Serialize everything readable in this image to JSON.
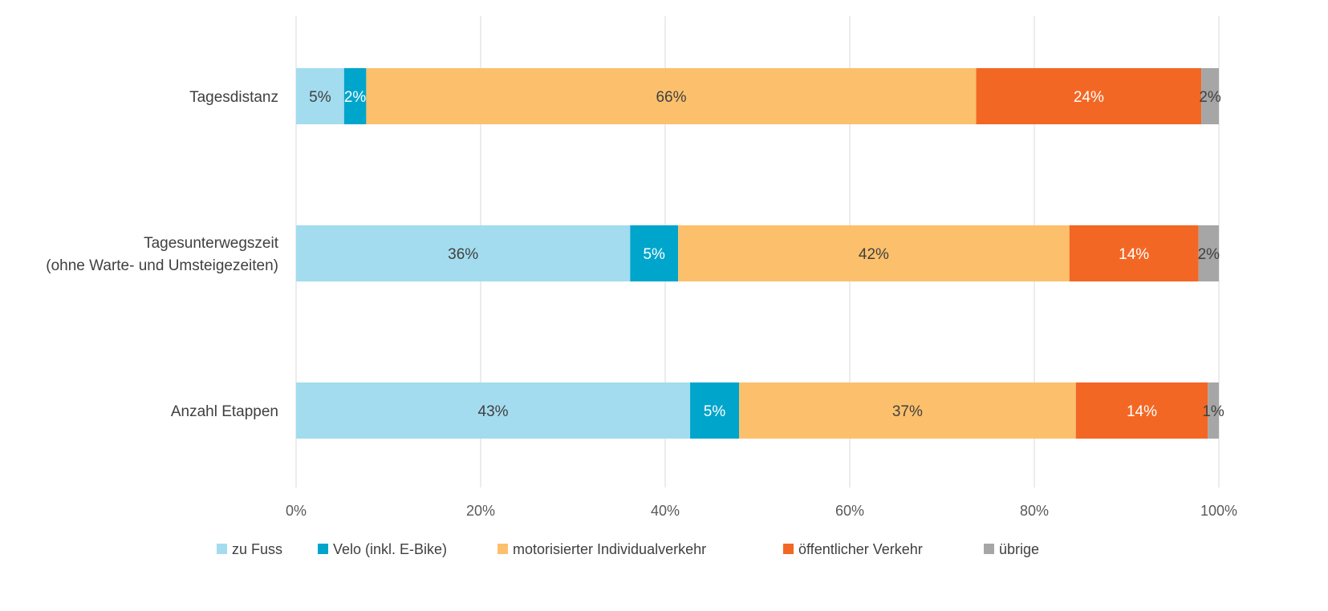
{
  "chart_data": {
    "type": "bar",
    "orientation": "horizontal",
    "stacked": "percent",
    "title": "",
    "xlabel": "",
    "ylabel": "",
    "xlim": [
      0,
      100
    ],
    "x_ticks": [
      "0%",
      "20%",
      "40%",
      "60%",
      "80%",
      "100%"
    ],
    "x_tick_values": [
      0,
      20,
      40,
      60,
      80,
      100
    ],
    "grid": "vertical",
    "legend_position": "bottom",
    "categories": [
      "Tagesdistanz",
      "Tagesunterwegszeit\n(ohne Warte- und Umsteigezeiten)",
      "Anzahl Etappen"
    ],
    "series": [
      {
        "name": "zu Fuss",
        "color": "#a3dcef",
        "label_color": "#404040",
        "values": [
          5.2,
          36.2,
          42.7
        ],
        "labels": [
          "5%",
          "36%",
          "43%"
        ]
      },
      {
        "name": "Velo (inkl. E-Bike)",
        "color": "#00a5cc",
        "label_color": "#ffffff",
        "values": [
          2.4,
          5.2,
          5.3
        ],
        "labels": [
          "2%",
          "5%",
          "5%"
        ]
      },
      {
        "name": "motorisierter Individualverkehr",
        "color": "#fcc06c",
        "label_color": "#404040",
        "values": [
          66.1,
          42.4,
          36.5
        ],
        "labels": [
          "66%",
          "42%",
          "37%"
        ]
      },
      {
        "name": "öffentlicher Verkehr",
        "color": "#f36724",
        "label_color": "#ffffff",
        "values": [
          24.4,
          14.0,
          14.3
        ],
        "labels": [
          "24%",
          "14%",
          "14%"
        ]
      },
      {
        "name": "übrige",
        "color": "#a6a6a6",
        "label_color": "#404040",
        "values": [
          1.9,
          2.2,
          1.2
        ],
        "labels": [
          "2%",
          "2%",
          "1%"
        ]
      }
    ]
  }
}
